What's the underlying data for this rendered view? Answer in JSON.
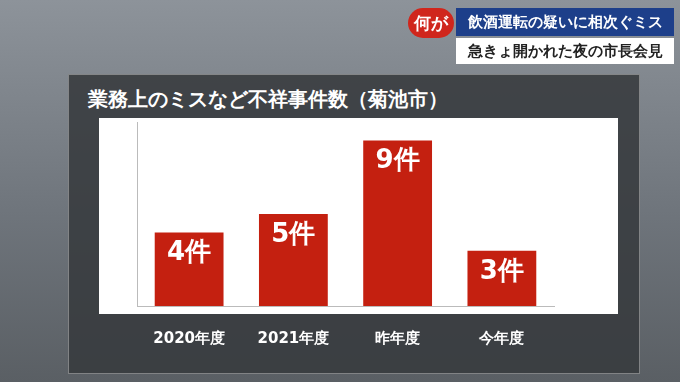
{
  "banner": {
    "tag": "何が",
    "line1": "飲酒運転の疑いに相次ぐミス",
    "line2": "急きょ開かれた夜の市長会見"
  },
  "chart_data": {
    "type": "bar",
    "title": "業務上のミスなど不祥事件数（菊池市）",
    "categories": [
      "2020年度",
      "2021年度",
      "昨年度",
      "今年度"
    ],
    "values": [
      4,
      5,
      9,
      3
    ],
    "value_labels": [
      "4件",
      "5件",
      "9件",
      "3件"
    ],
    "color": "#c42010",
    "ylim": [
      0,
      10
    ],
    "grid": false,
    "data_labels": true,
    "tick_labels": "x"
  }
}
